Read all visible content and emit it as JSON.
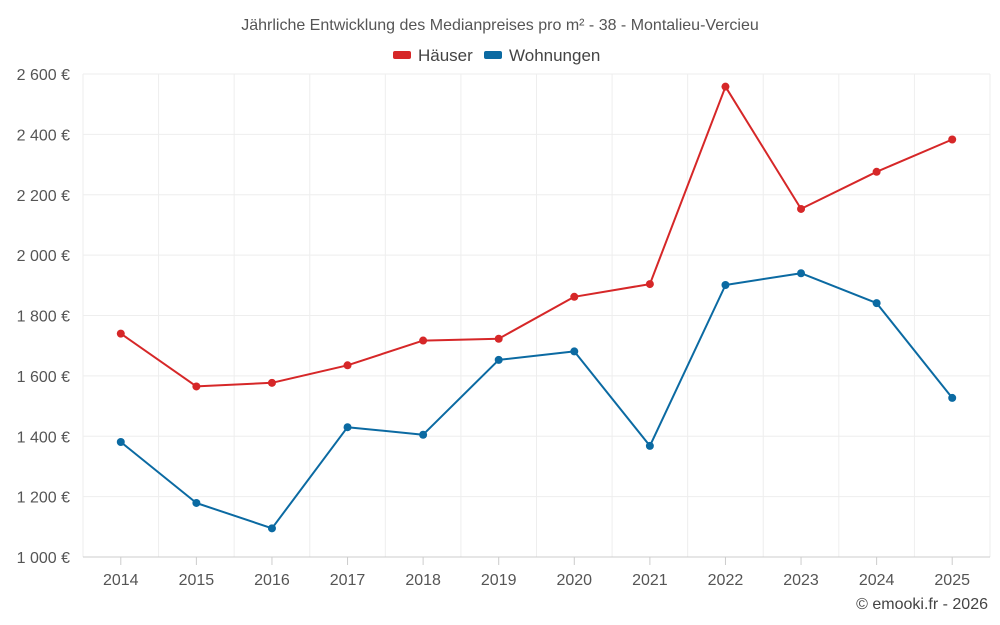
{
  "chart_data": {
    "type": "line",
    "title": "Jährliche Entwicklung des Medianpreises pro m² - 38 - Montalieu-Vercieu",
    "categories": [
      "2014",
      "2015",
      "2016",
      "2017",
      "2018",
      "2019",
      "2020",
      "2021",
      "2022",
      "2023",
      "2024",
      "2025"
    ],
    "series": [
      {
        "name": "Häuser",
        "color": "#d62728",
        "values": [
          1740,
          1565,
          1577,
          1635,
          1717,
          1723,
          1862,
          1904,
          2558,
          2153,
          2276,
          2383
        ]
      },
      {
        "name": "Wohnungen",
        "color": "#0b6aa2",
        "values": [
          1381,
          1179,
          1095,
          1430,
          1405,
          1653,
          1681,
          1368,
          1901,
          1940,
          1841,
          1527
        ]
      }
    ],
    "ylim": [
      1000,
      2600
    ],
    "yticks": [
      1000,
      1200,
      1400,
      1600,
      1800,
      2000,
      2200,
      2400,
      2600
    ],
    "ytick_labels": [
      "1 000 €",
      "1 200 €",
      "1 400 €",
      "1 600 €",
      "1 800 €",
      "2 000 €",
      "2 200 €",
      "2 400 €",
      "2 600 €"
    ],
    "xlabel": "",
    "ylabel": "",
    "grid": true,
    "legend_position": "top-center"
  },
  "credit": "© emooki.fr - 2026"
}
